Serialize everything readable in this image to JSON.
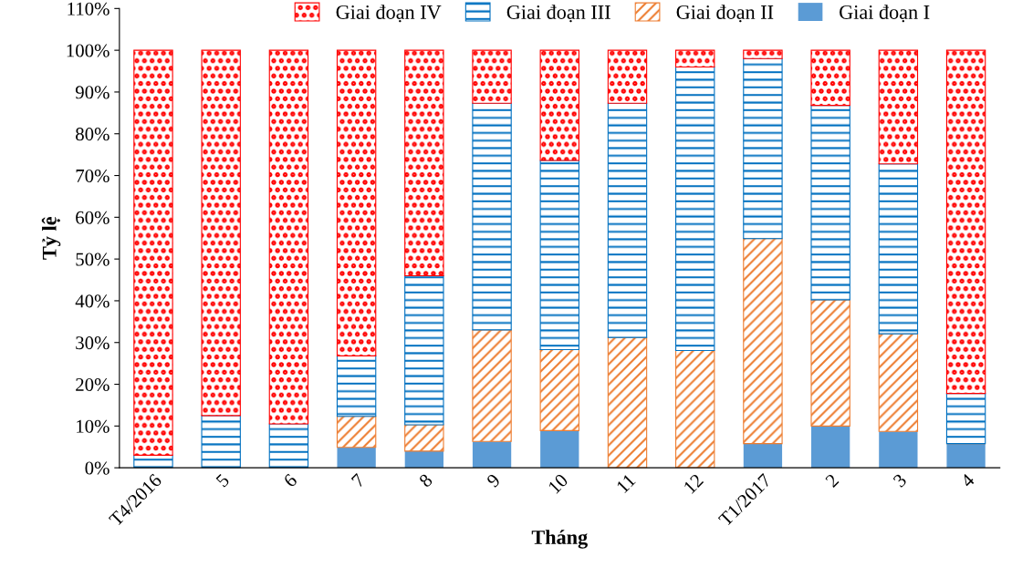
{
  "chart_data": {
    "type": "bar",
    "stacked": true,
    "xlabel": "Tháng",
    "ylabel": "Tỷ lệ",
    "categories": [
      "T4/2016",
      "5",
      "6",
      "7",
      "8",
      "9",
      "10",
      "11",
      "12",
      "T1/2017",
      "2",
      "3",
      "4"
    ],
    "series": [
      {
        "name": "Giai đoạn I",
        "color": "#5b9bd5",
        "values": [
          0,
          0,
          0,
          4.9,
          4.0,
          6.3,
          8.9,
          0,
          0,
          5.8,
          10.0,
          8.7,
          5.8
        ]
      },
      {
        "name": "Giai đoạn II",
        "color": "#ed7d31",
        "values": [
          0,
          0,
          0,
          7.4,
          6.3,
          26.7,
          19.4,
          31.2,
          28.1,
          49.1,
          30.2,
          23.4,
          0
        ]
      },
      {
        "name": "Giai đoạn III",
        "color": "#0070c0",
        "values": [
          3.0,
          12.5,
          10.5,
          14.5,
          35.7,
          54.3,
          45.3,
          56.1,
          67.9,
          43.1,
          46.6,
          40.7,
          12.0
        ]
      },
      {
        "name": "Giai đoạn IV",
        "color": "#ff0000",
        "values": [
          97.0,
          87.5,
          89.5,
          73.2,
          54.0,
          12.7,
          26.4,
          12.7,
          4.0,
          2.0,
          13.2,
          27.2,
          82.2
        ]
      }
    ],
    "ylim": [
      0,
      110
    ],
    "yticks": [
      {
        "value": 0,
        "label": "0%"
      },
      {
        "value": 10,
        "label": "10%"
      },
      {
        "value": 20,
        "label": "20%"
      },
      {
        "value": 30,
        "label": "30%"
      },
      {
        "value": 40,
        "label": "40%"
      },
      {
        "value": 50,
        "label": "50%"
      },
      {
        "value": 60,
        "label": "60%"
      },
      {
        "value": 70,
        "label": "70%"
      },
      {
        "value": 80,
        "label": "80%"
      },
      {
        "value": 90,
        "label": "90%"
      },
      {
        "value": 100,
        "label": "100%"
      },
      {
        "value": 110,
        "label": "110%"
      }
    ],
    "legend": "top",
    "grid": false
  }
}
